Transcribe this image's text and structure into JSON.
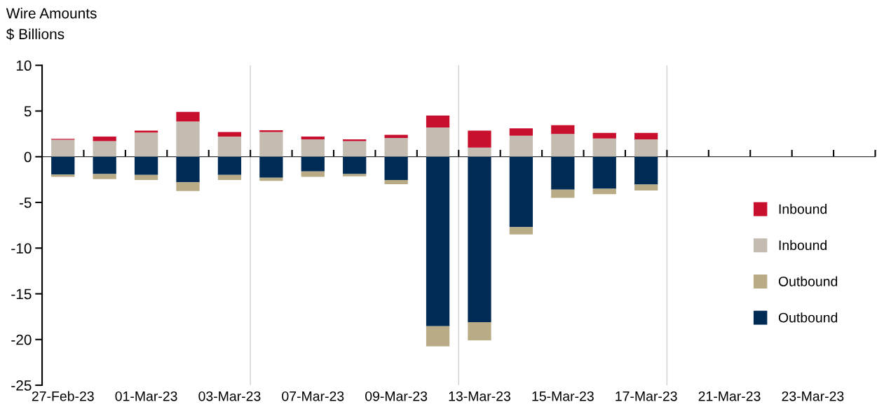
{
  "chart_data": {
    "type": "bar",
    "title": "Wire Amounts",
    "subtitle": "$ Billions",
    "stacked": true,
    "categories": [
      "27-Feb-23",
      null,
      "01-Mar-23",
      null,
      "03-Mar-23",
      null,
      "07-Mar-23",
      null,
      "09-Mar-23",
      null,
      "13-Mar-23",
      null,
      "15-Mar-23",
      null,
      "17-Mar-23",
      null,
      "21-Mar-23",
      null,
      "23-Mar-23",
      null
    ],
    "series": [
      {
        "name": "Inbound",
        "color": "#c4bcb0",
        "values": [
          1.85,
          1.7,
          2.65,
          3.85,
          2.2,
          2.7,
          1.9,
          1.7,
          2.05,
          3.2,
          1.0,
          2.3,
          2.5,
          2.0,
          1.9,
          null,
          null,
          null,
          null,
          null
        ]
      },
      {
        "name": "Inbound",
        "color": "#c8102e",
        "values": [
          0.1,
          0.5,
          0.2,
          1.05,
          0.5,
          0.2,
          0.3,
          0.2,
          0.35,
          1.3,
          1.85,
          0.8,
          0.95,
          0.6,
          0.7,
          null,
          null,
          null,
          null,
          null
        ]
      },
      {
        "name": "Outbound",
        "color": "#002b55",
        "values": [
          -1.95,
          -1.9,
          -2.0,
          -2.8,
          -2.0,
          -2.3,
          -1.6,
          -1.9,
          -2.55,
          -18.55,
          -18.1,
          -7.7,
          -3.6,
          -3.5,
          -3.05,
          null,
          null,
          null,
          null,
          null
        ]
      },
      {
        "name": "Outbound",
        "color": "#b8ab85",
        "values": [
          -0.25,
          -0.55,
          -0.55,
          -0.95,
          -0.55,
          -0.35,
          -0.6,
          -0.25,
          -0.45,
          -2.2,
          -2.0,
          -0.8,
          -0.9,
          -0.6,
          -0.65,
          null,
          null,
          null,
          null,
          null
        ]
      }
    ],
    "ylim": [
      -25,
      10
    ],
    "yticks": [
      -25,
      -20,
      -15,
      -10,
      -5,
      0,
      5,
      10
    ],
    "legend": "right",
    "grid": false
  }
}
